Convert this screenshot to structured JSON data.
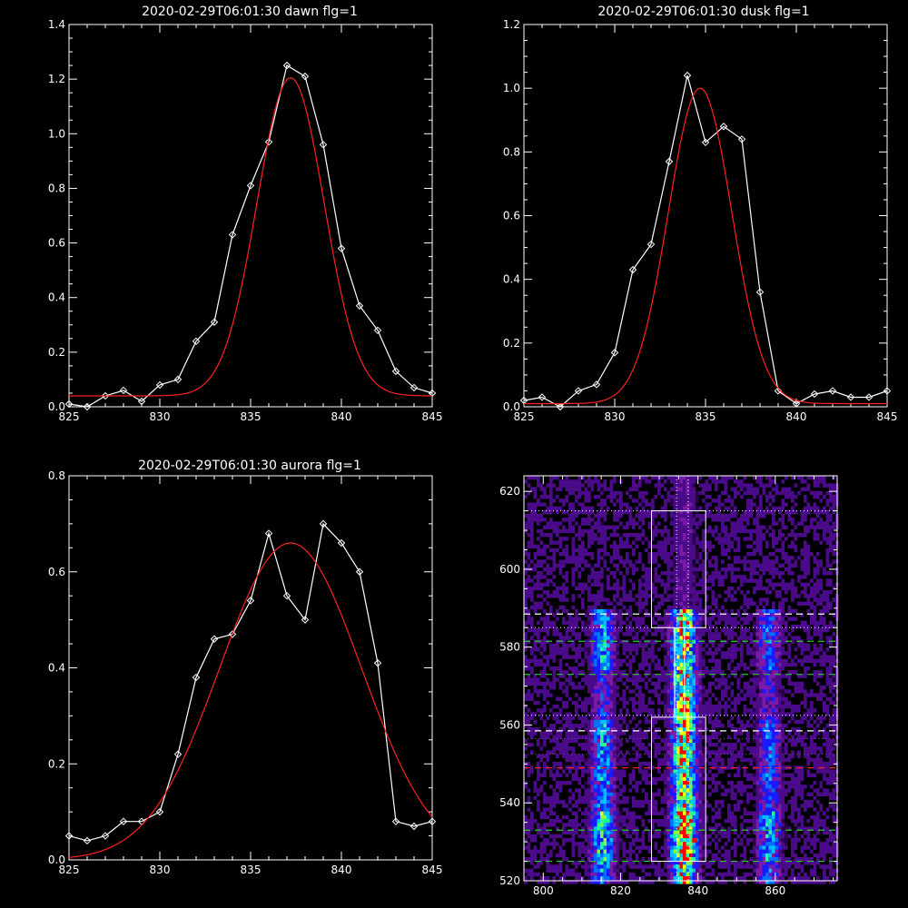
{
  "chart_data": [
    {
      "type": "line",
      "title": "2020-02-29T06:01:30 dawn flg=1",
      "xlabel": "",
      "ylabel": "",
      "xlim": [
        825,
        845
      ],
      "ylim": [
        0.0,
        1.4
      ],
      "xticks": [
        825,
        830,
        835,
        840,
        845
      ],
      "yticks": [
        0.0,
        0.2,
        0.4,
        0.6,
        0.8,
        1.0,
        1.2,
        1.4
      ],
      "series": [
        {
          "color": "#ffffff",
          "marker": "diamond",
          "x": [
            825,
            826,
            827,
            828,
            829,
            830,
            831,
            832,
            833,
            834,
            835,
            836,
            837,
            838,
            839,
            840,
            841,
            842,
            843,
            844,
            845
          ],
          "y": [
            0.01,
            0.0,
            0.04,
            0.06,
            0.02,
            0.08,
            0.1,
            0.24,
            0.31,
            0.63,
            0.81,
            0.97,
            1.25,
            1.21,
            0.96,
            0.58,
            0.37,
            0.28,
            0.13,
            0.07,
            0.05
          ]
        },
        {
          "color": "#ff2020",
          "fit": "gaussian",
          "center": 837.2,
          "amplitude": 1.165,
          "sigma": 1.85,
          "offset": 0.04
        }
      ]
    },
    {
      "type": "line",
      "title": "2020-02-29T06:01:30 dusk flg=1",
      "xlabel": "",
      "ylabel": "",
      "xlim": [
        825,
        845
      ],
      "ylim": [
        0.0,
        1.2
      ],
      "xticks": [
        825,
        830,
        835,
        840,
        845
      ],
      "yticks": [
        0.0,
        0.2,
        0.4,
        0.6,
        0.8,
        1.0,
        1.2
      ],
      "series": [
        {
          "color": "#ffffff",
          "marker": "diamond",
          "x": [
            825,
            826,
            827,
            828,
            829,
            830,
            831,
            832,
            833,
            834,
            835,
            836,
            837,
            838,
            839,
            840,
            841,
            842,
            843,
            844,
            845
          ],
          "y": [
            0.02,
            0.03,
            0.0,
            0.05,
            0.07,
            0.17,
            0.43,
            0.51,
            0.77,
            1.04,
            0.83,
            0.88,
            0.84,
            0.36,
            0.05,
            0.01,
            0.04,
            0.05,
            0.03,
            0.03,
            0.05
          ]
        },
        {
          "color": "#ff2020",
          "fit": "gaussian",
          "center": 834.7,
          "amplitude": 0.99,
          "sigma": 1.75,
          "offset": 0.01
        }
      ]
    },
    {
      "type": "line",
      "title": "2020-02-29T06:01:30 aurora flg=1",
      "xlabel": "",
      "ylabel": "",
      "xlim": [
        825,
        845
      ],
      "ylim": [
        0.0,
        0.8
      ],
      "xticks": [
        825,
        830,
        835,
        840,
        845
      ],
      "yticks": [
        0.0,
        0.2,
        0.4,
        0.6,
        0.8
      ],
      "series": [
        {
          "color": "#ffffff",
          "marker": "diamond",
          "x": [
            825,
            826,
            827,
            828,
            829,
            830,
            831,
            832,
            833,
            834,
            835,
            836,
            837,
            838,
            839,
            840,
            841,
            842,
            843,
            844,
            845
          ],
          "y": [
            0.05,
            0.04,
            0.05,
            0.08,
            0.08,
            0.1,
            0.22,
            0.38,
            0.46,
            0.47,
            0.54,
            0.68,
            0.55,
            0.5,
            0.7,
            0.66,
            0.6,
            0.41,
            0.08,
            0.07,
            0.08
          ]
        },
        {
          "color": "#ff2020",
          "fit": "gaussian",
          "center": 837.2,
          "amplitude": 0.66,
          "sigma": 3.9,
          "offset": 0.0
        }
      ]
    },
    {
      "type": "heatmap",
      "title": "",
      "xlim": [
        795,
        876
      ],
      "ylim": [
        520,
        624
      ],
      "xticks": [
        800,
        820,
        840,
        860
      ],
      "yticks": [
        520,
        540,
        560,
        580,
        600,
        620
      ],
      "colormap": [
        "#2a004a",
        "#4a0a8a",
        "#7a1aa8",
        "#1a1aff",
        "#0070ff",
        "#00c0ff",
        "#20ff90",
        "#80ff40",
        "#ffff00",
        "#ff0000"
      ],
      "emission_lines_x": [
        815,
        836,
        858
      ],
      "dotted_vlines_x": [
        834.5,
        837.5
      ],
      "upper_box": {
        "x": [
          828,
          842
        ],
        "y": [
          585,
          615
        ]
      },
      "lower_box": {
        "x": [
          828,
          842
        ],
        "y": [
          525,
          562
        ]
      },
      "dashed_hlines": [
        {
          "y": 588.5,
          "color": "#ffffff"
        },
        {
          "y": 581.5,
          "color": "#20d020"
        },
        {
          "y": 573,
          "color": "#20d020"
        },
        {
          "y": 558.5,
          "color": "#ffffff"
        },
        {
          "y": 549,
          "color": "#ff2020"
        },
        {
          "y": 533,
          "color": "#20d020"
        },
        {
          "y": 525,
          "color": "#20d020"
        }
      ],
      "dotted_hlines": [
        {
          "y": 615,
          "color": "#ffffff"
        },
        {
          "y": 585,
          "color": "#ffffff"
        },
        {
          "y": 562.5,
          "color": "#ffffff"
        },
        {
          "y": 556.5,
          "color": "#ff2020"
        },
        {
          "y": 552.5,
          "color": "#ff2020"
        }
      ]
    }
  ]
}
